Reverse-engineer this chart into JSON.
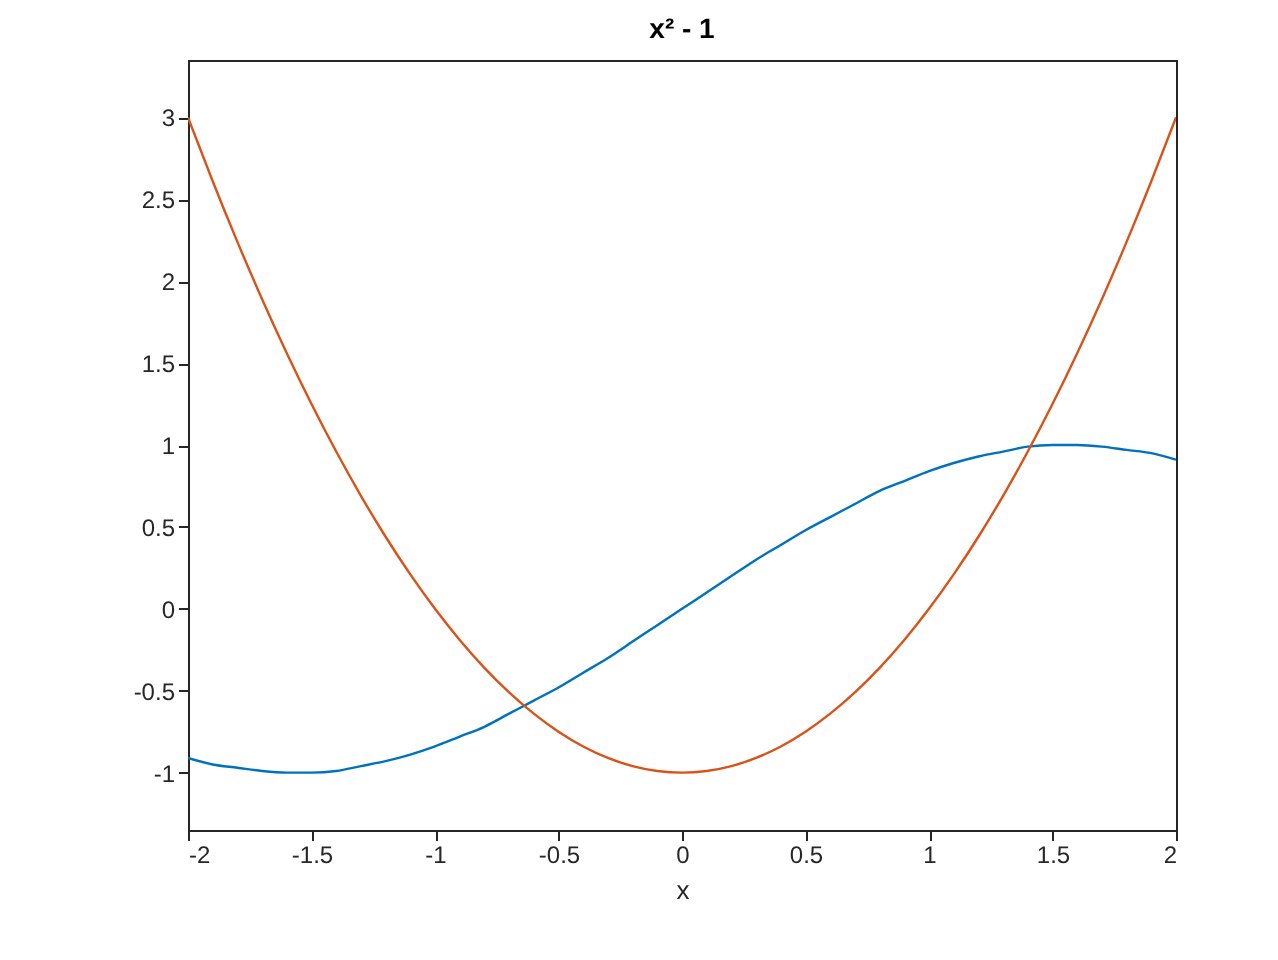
{
  "chart_data": {
    "type": "line",
    "title": "x² - 1",
    "xlabel": "x",
    "x": [
      -2,
      -1.9,
      -1.8,
      -1.7,
      -1.6,
      -1.5,
      -1.4,
      -1.3,
      -1.2,
      -1.1,
      -1,
      -0.9,
      -0.8,
      -0.7,
      -0.6,
      -0.5,
      -0.4,
      -0.3,
      -0.2,
      -0.1,
      0,
      0.1,
      0.2,
      0.3,
      0.4,
      0.5,
      0.6,
      0.7,
      0.8,
      0.9,
      1,
      1.1,
      1.2,
      1.3,
      1.4,
      1.5,
      1.6,
      1.7,
      1.8,
      1.9,
      2
    ],
    "series": [
      {
        "color": "#0072bd",
        "values": [
          -0.91,
          -0.95,
          -0.97,
          -0.99,
          -1,
          -1,
          -0.99,
          -0.96,
          -0.93,
          -0.89,
          -0.84,
          -0.78,
          -0.72,
          -0.64,
          -0.56,
          -0.48,
          -0.39,
          -0.3,
          -0.2,
          -0.1,
          0,
          0.1,
          0.2,
          0.3,
          0.39,
          0.48,
          0.56,
          0.64,
          0.72,
          0.78,
          0.84,
          0.89,
          0.93,
          0.96,
          0.99,
          1,
          1,
          0.99,
          0.97,
          0.95,
          0.91
        ]
      },
      {
        "color": "#d95319",
        "values": [
          3,
          2.61,
          2.24,
          1.89,
          1.56,
          1.25,
          0.96,
          0.69,
          0.44,
          0.21,
          0,
          -0.19,
          -0.36,
          -0.51,
          -0.64,
          -0.75,
          -0.84,
          -0.91,
          -0.96,
          -0.99,
          -1,
          -0.99,
          -0.96,
          -0.91,
          -0.84,
          -0.75,
          -0.64,
          -0.51,
          -0.36,
          -0.19,
          0,
          0.21,
          0.44,
          0.69,
          0.96,
          1.25,
          1.56,
          1.89,
          2.24,
          2.61,
          3
        ]
      }
    ],
    "xlim": [
      -2,
      2
    ],
    "xticks": [
      -2,
      -1.5,
      -1,
      -0.5,
      0,
      0.5,
      1,
      1.5,
      2
    ],
    "ylim": [
      -1.35,
      3.35
    ],
    "yticks": [
      -1,
      -0.5,
      0,
      0.5,
      1,
      1.5,
      2,
      2.5,
      3
    ]
  }
}
